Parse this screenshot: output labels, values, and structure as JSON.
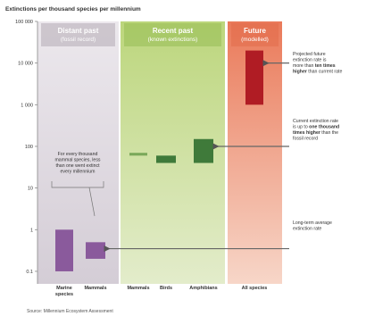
{
  "chart_data": {
    "type": "floating-bar",
    "title": "Extinctions per thousand species per millennium",
    "source": "Source: Millennium Ecosystem Assessment",
    "y_scale": "log",
    "ylim": [
      0.05,
      100000
    ],
    "y_ticks": [
      {
        "value": 100000,
        "label": "100 000"
      },
      {
        "value": 10000,
        "label": "10 000"
      },
      {
        "value": 1000,
        "label": "1 000"
      },
      {
        "value": 100,
        "label": "100"
      },
      {
        "value": 10,
        "label": "10"
      },
      {
        "value": 1,
        "label": "1"
      },
      {
        "value": 0.1,
        "label": "0.1"
      }
    ],
    "panels": [
      {
        "key": "distant",
        "title": "Distant past",
        "subtitle": "(fossil record)",
        "color": "#d8d2da",
        "header_color": "#a89ea9"
      },
      {
        "key": "recent",
        "title": "Recent past",
        "subtitle": "(known extinctions)",
        "color": "#c9dc9a",
        "header_color": "#8fb84c"
      },
      {
        "key": "future",
        "title": "Future",
        "subtitle": "(modelled)",
        "color": "#f0a487",
        "header_color": "#e06848"
      }
    ],
    "categories": [
      {
        "label": "Marine species",
        "label_lines": [
          "Marine",
          "species"
        ],
        "panel": "distant",
        "low": 0.1,
        "high": 1,
        "color": "#8a5a9c"
      },
      {
        "label": "Mammals",
        "label_lines": [
          "Mammals"
        ],
        "panel": "distant",
        "low": 0.2,
        "high": 0.5,
        "color": "#8a5a9c"
      },
      {
        "label": "Mammals",
        "label_lines": [
          "Mammals"
        ],
        "panel": "recent",
        "low": 60,
        "high": 70,
        "color": "#7aa85a"
      },
      {
        "label": "Birds",
        "label_lines": [
          "Birds"
        ],
        "panel": "recent",
        "low": 40,
        "high": 60,
        "color": "#3f7a3a"
      },
      {
        "label": "Amphibians",
        "label_lines": [
          "Amphibians"
        ],
        "panel": "recent",
        "low": 40,
        "high": 150,
        "color": "#3f7a3a"
      },
      {
        "label": "All species",
        "label_lines": [
          "All species"
        ],
        "panel": "future",
        "low": 1000,
        "high": 20000,
        "color": "#b01c24"
      }
    ],
    "annotations": [
      {
        "key": "inner",
        "lines": [
          "For every thousand",
          "mammal species, less",
          "than one went extinct",
          "every millennium"
        ]
      },
      {
        "key": "future",
        "lines": [
          [
            {
              "t": "Projected future",
              "b": false
            }
          ],
          [
            {
              "t": "extinction rate is",
              "b": false
            }
          ],
          [
            {
              "t": "more than ",
              "b": false
            },
            {
              "t": "ten times",
              "b": true
            }
          ],
          [
            {
              "t": "higher",
              "b": true
            },
            {
              "t": " than current rate",
              "b": false
            }
          ]
        ]
      },
      {
        "key": "current",
        "lines": [
          [
            {
              "t": "Current extinction rate",
              "b": false
            }
          ],
          [
            {
              "t": "is up to ",
              "b": false
            },
            {
              "t": "one thousand",
              "b": true
            }
          ],
          [
            {
              "t": "times higher",
              "b": true
            },
            {
              "t": " than the",
              "b": false
            }
          ],
          [
            {
              "t": "fossil record",
              "b": false
            }
          ]
        ]
      },
      {
        "key": "longterm",
        "lines": [
          [
            {
              "t": "Long-term average",
              "b": false
            }
          ],
          [
            {
              "t": "extinction rate",
              "b": false
            }
          ]
        ]
      }
    ],
    "reference_lines": [
      {
        "key": "longterm",
        "value": 0.35
      },
      {
        "key": "current",
        "value": 100
      },
      {
        "key": "future",
        "value": 10000
      }
    ]
  }
}
